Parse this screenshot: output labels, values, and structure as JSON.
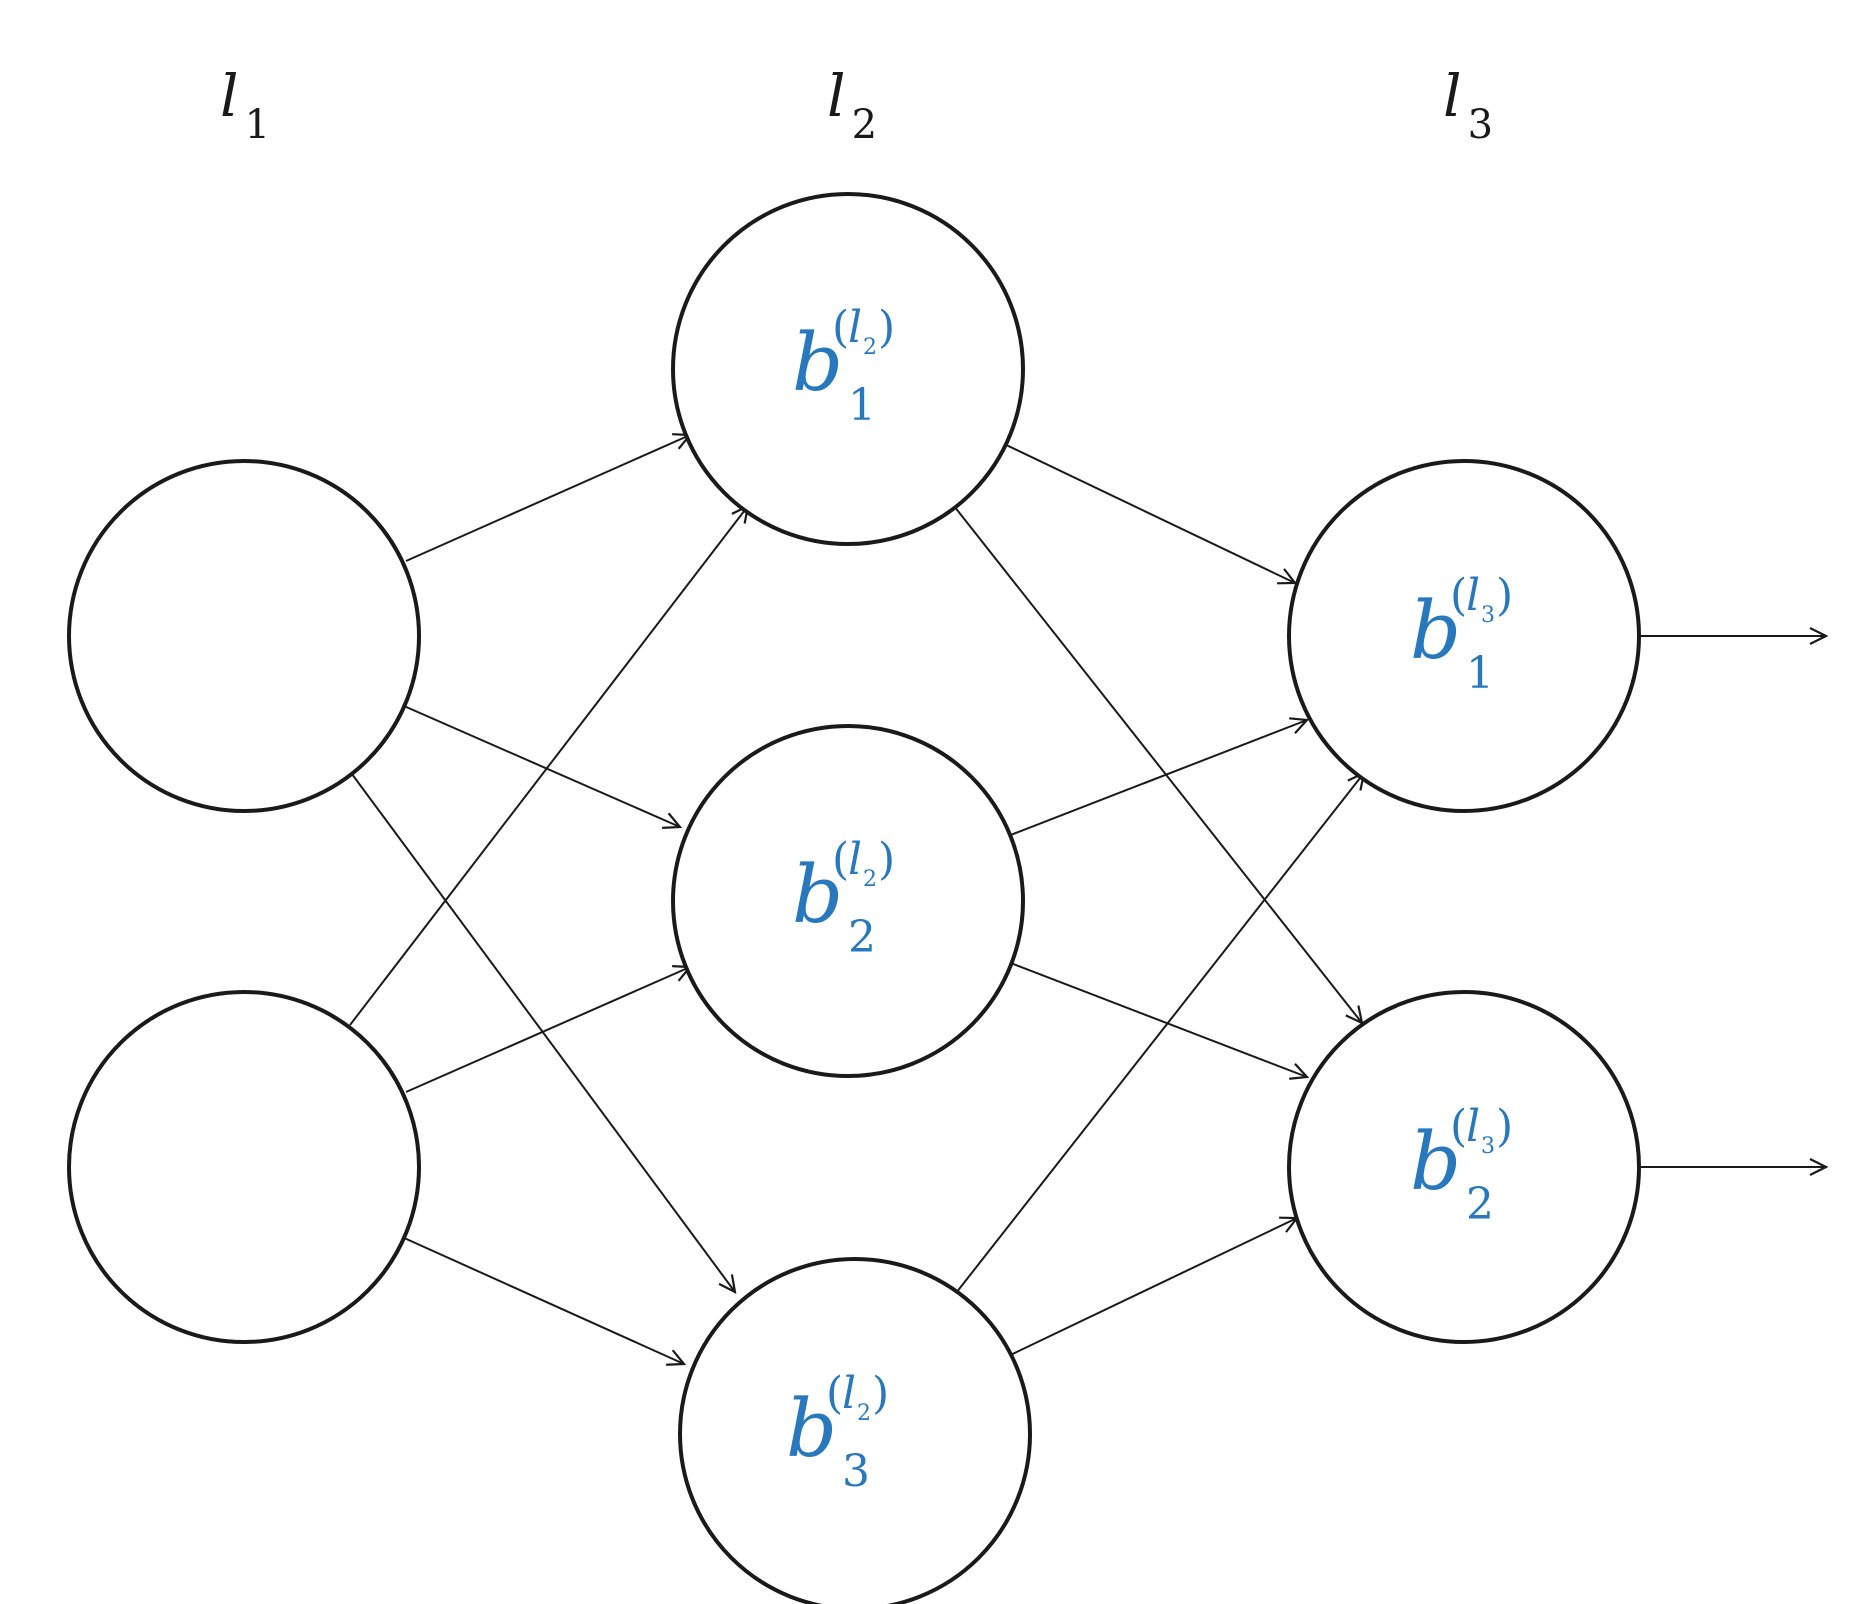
{
  "colors": {
    "bias_text": "#2878be",
    "stroke": "#1a1a1a",
    "background": "#ffffff"
  },
  "layers": [
    {
      "letter": "l",
      "index": "1"
    },
    {
      "letter": "l",
      "index": "2"
    },
    {
      "letter": "l",
      "index": "3"
    }
  ],
  "nodes": {
    "layer1": [
      {
        "label": ""
      },
      {
        "label": ""
      }
    ],
    "layer2": [
      {
        "symbol": "b",
        "layer_letter": "l",
        "layer_index": "2",
        "subscript": "1"
      },
      {
        "symbol": "b",
        "layer_letter": "l",
        "layer_index": "2",
        "subscript": "2"
      },
      {
        "symbol": "b",
        "layer_letter": "l",
        "layer_index": "2",
        "subscript": "3"
      }
    ],
    "layer3": [
      {
        "symbol": "b",
        "layer_letter": "l",
        "layer_index": "3",
        "subscript": "1"
      },
      {
        "symbol": "b",
        "layer_letter": "l",
        "layer_index": "3",
        "subscript": "2"
      }
    ]
  }
}
